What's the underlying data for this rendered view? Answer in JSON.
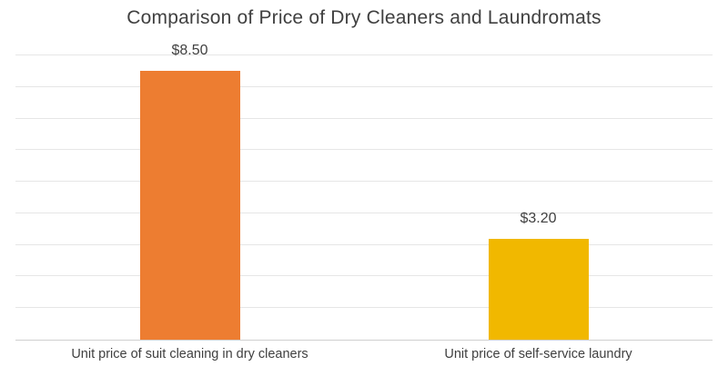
{
  "chart_data": {
    "type": "bar",
    "title": "Comparison of Price of Dry Cleaners and Laundromats",
    "categories": [
      "Unit price of suit cleaning in dry cleaners",
      "Unit price of self-service laundry"
    ],
    "values": [
      8.5,
      3.2
    ],
    "data_labels": [
      "$8.50",
      "$3.20"
    ],
    "bar_colors": [
      "#ED7D31",
      "#F1B800"
    ],
    "xlabel": "",
    "ylabel": "",
    "ylim": [
      0,
      9
    ],
    "grid_step": 1,
    "grid": true,
    "legend_position": "none",
    "y_tick_labels_visible": false
  },
  "style": {
    "background": "#FFFFFF",
    "title_color": "#404040",
    "value_label_color": "#404040",
    "category_label_color": "#404040",
    "gridline_color": "#E6E6E6",
    "axis_line_color": "#D0D0D0"
  }
}
